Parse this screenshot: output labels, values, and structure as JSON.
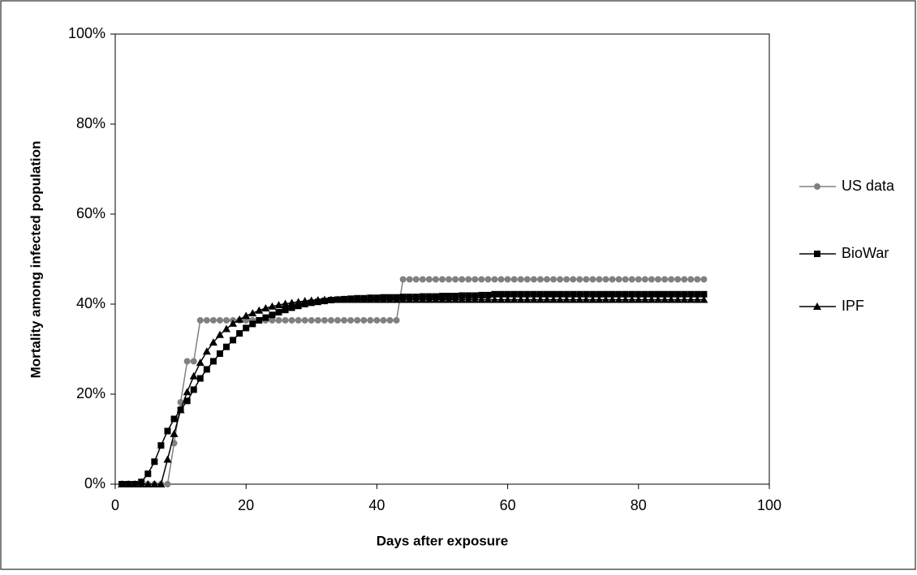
{
  "chart_data": {
    "type": "line",
    "x_label": "Days after exposure",
    "y_label": "Mortality among infected population",
    "xlim": [
      0,
      100
    ],
    "xticks": [
      0,
      20,
      40,
      60,
      80,
      100
    ],
    "ylim": [
      0,
      100
    ],
    "yticks": [
      {
        "value": 0,
        "label": "0%"
      },
      {
        "value": 20,
        "label": "20%"
      },
      {
        "value": 40,
        "label": "40%"
      },
      {
        "value": 60,
        "label": "60%"
      },
      {
        "value": 80,
        "label": "80%"
      },
      {
        "value": 100,
        "label": "100%"
      }
    ],
    "grid": false,
    "legend": "right",
    "x": [
      1,
      2,
      3,
      4,
      5,
      6,
      7,
      8,
      9,
      10,
      11,
      12,
      13,
      14,
      15,
      16,
      17,
      18,
      19,
      20,
      21,
      22,
      23,
      24,
      25,
      26,
      27,
      28,
      29,
      30,
      31,
      32,
      33,
      34,
      35,
      36,
      37,
      38,
      39,
      40,
      41,
      42,
      43,
      44,
      45,
      46,
      47,
      48,
      49,
      50,
      51,
      52,
      53,
      54,
      55,
      56,
      57,
      58,
      59,
      60,
      61,
      62,
      63,
      64,
      65,
      66,
      67,
      68,
      69,
      70,
      71,
      72,
      73,
      74,
      75,
      76,
      77,
      78,
      79,
      80,
      81,
      82,
      83,
      84,
      85,
      86,
      87,
      88,
      89,
      90
    ],
    "series": [
      {
        "name": "US data",
        "color": "#808080",
        "marker": "circle",
        "values": [
          0,
          0,
          0,
          0,
          0,
          0,
          0,
          0,
          9.1,
          18.2,
          27.3,
          27.3,
          36.4,
          36.4,
          36.4,
          36.4,
          36.4,
          36.4,
          36.4,
          36.4,
          36.4,
          36.4,
          36.4,
          36.4,
          36.4,
          36.4,
          36.4,
          36.4,
          36.4,
          36.4,
          36.4,
          36.4,
          36.4,
          36.4,
          36.4,
          36.4,
          36.4,
          36.4,
          36.4,
          36.4,
          36.4,
          36.4,
          36.4,
          45.5,
          45.5,
          45.5,
          45.5,
          45.5,
          45.5,
          45.5,
          45.5,
          45.5,
          45.5,
          45.5,
          45.5,
          45.5,
          45.5,
          45.5,
          45.5,
          45.5,
          45.5,
          45.5,
          45.5,
          45.5,
          45.5,
          45.5,
          45.5,
          45.5,
          45.5,
          45.5,
          45.5,
          45.5,
          45.5,
          45.5,
          45.5,
          45.5,
          45.5,
          45.5,
          45.5,
          45.5,
          45.5,
          45.5,
          45.5,
          45.5,
          45.5,
          45.5,
          45.5,
          45.5,
          45.5,
          45.5
        ]
      },
      {
        "name": "BioWar",
        "color": "#000000",
        "marker": "square",
        "values": [
          0,
          0,
          0,
          0.5,
          2.3,
          5,
          8.6,
          11.8,
          14.5,
          16.5,
          18.5,
          21,
          23.5,
          25.5,
          27.3,
          29,
          30.5,
          32,
          33.5,
          34.7,
          35.6,
          36.4,
          37,
          37.6,
          38.2,
          38.7,
          39.2,
          39.6,
          40,
          40.3,
          40.5,
          40.7,
          40.9,
          41,
          41.1,
          41.2,
          41.3,
          41.3,
          41.4,
          41.4,
          41.5,
          41.5,
          41.5,
          41.6,
          41.6,
          41.6,
          41.7,
          41.7,
          41.7,
          41.8,
          41.8,
          41.8,
          41.9,
          41.9,
          41.9,
          42,
          42,
          42.2,
          42.2,
          42.2,
          42.2,
          42.2,
          42.2,
          42.2,
          42.2,
          42.2,
          42.2,
          42.2,
          42.2,
          42.2,
          42.2,
          42.2,
          42.2,
          42.2,
          42.2,
          42.2,
          42.2,
          42.2,
          42.2,
          42.2,
          42.2,
          42.2,
          42.2,
          42.2,
          42.2,
          42.2,
          42.2,
          42.2,
          42.2,
          42.2
        ]
      },
      {
        "name": "IPF",
        "color": "#000000",
        "marker": "triangle",
        "values": [
          0,
          0,
          0,
          0,
          0,
          0,
          0,
          5.5,
          11.2,
          16.5,
          20.5,
          24,
          27,
          29.5,
          31.5,
          33.2,
          34.5,
          35.7,
          36.6,
          37.4,
          38,
          38.6,
          39.1,
          39.5,
          39.8,
          40.1,
          40.3,
          40.5,
          40.7,
          40.8,
          40.9,
          41,
          41,
          41,
          41,
          41,
          41,
          41,
          41,
          41,
          41,
          41,
          41,
          41,
          41,
          41,
          41,
          41,
          41,
          41,
          41,
          41,
          41,
          41,
          41,
          41,
          41,
          41,
          41,
          41,
          41,
          41,
          41,
          41,
          41,
          41,
          41,
          41,
          41,
          41,
          41,
          41,
          41,
          41,
          41,
          41,
          41,
          41,
          41,
          41,
          41,
          41,
          41,
          41,
          41,
          41,
          41,
          41,
          41,
          41
        ]
      }
    ]
  }
}
